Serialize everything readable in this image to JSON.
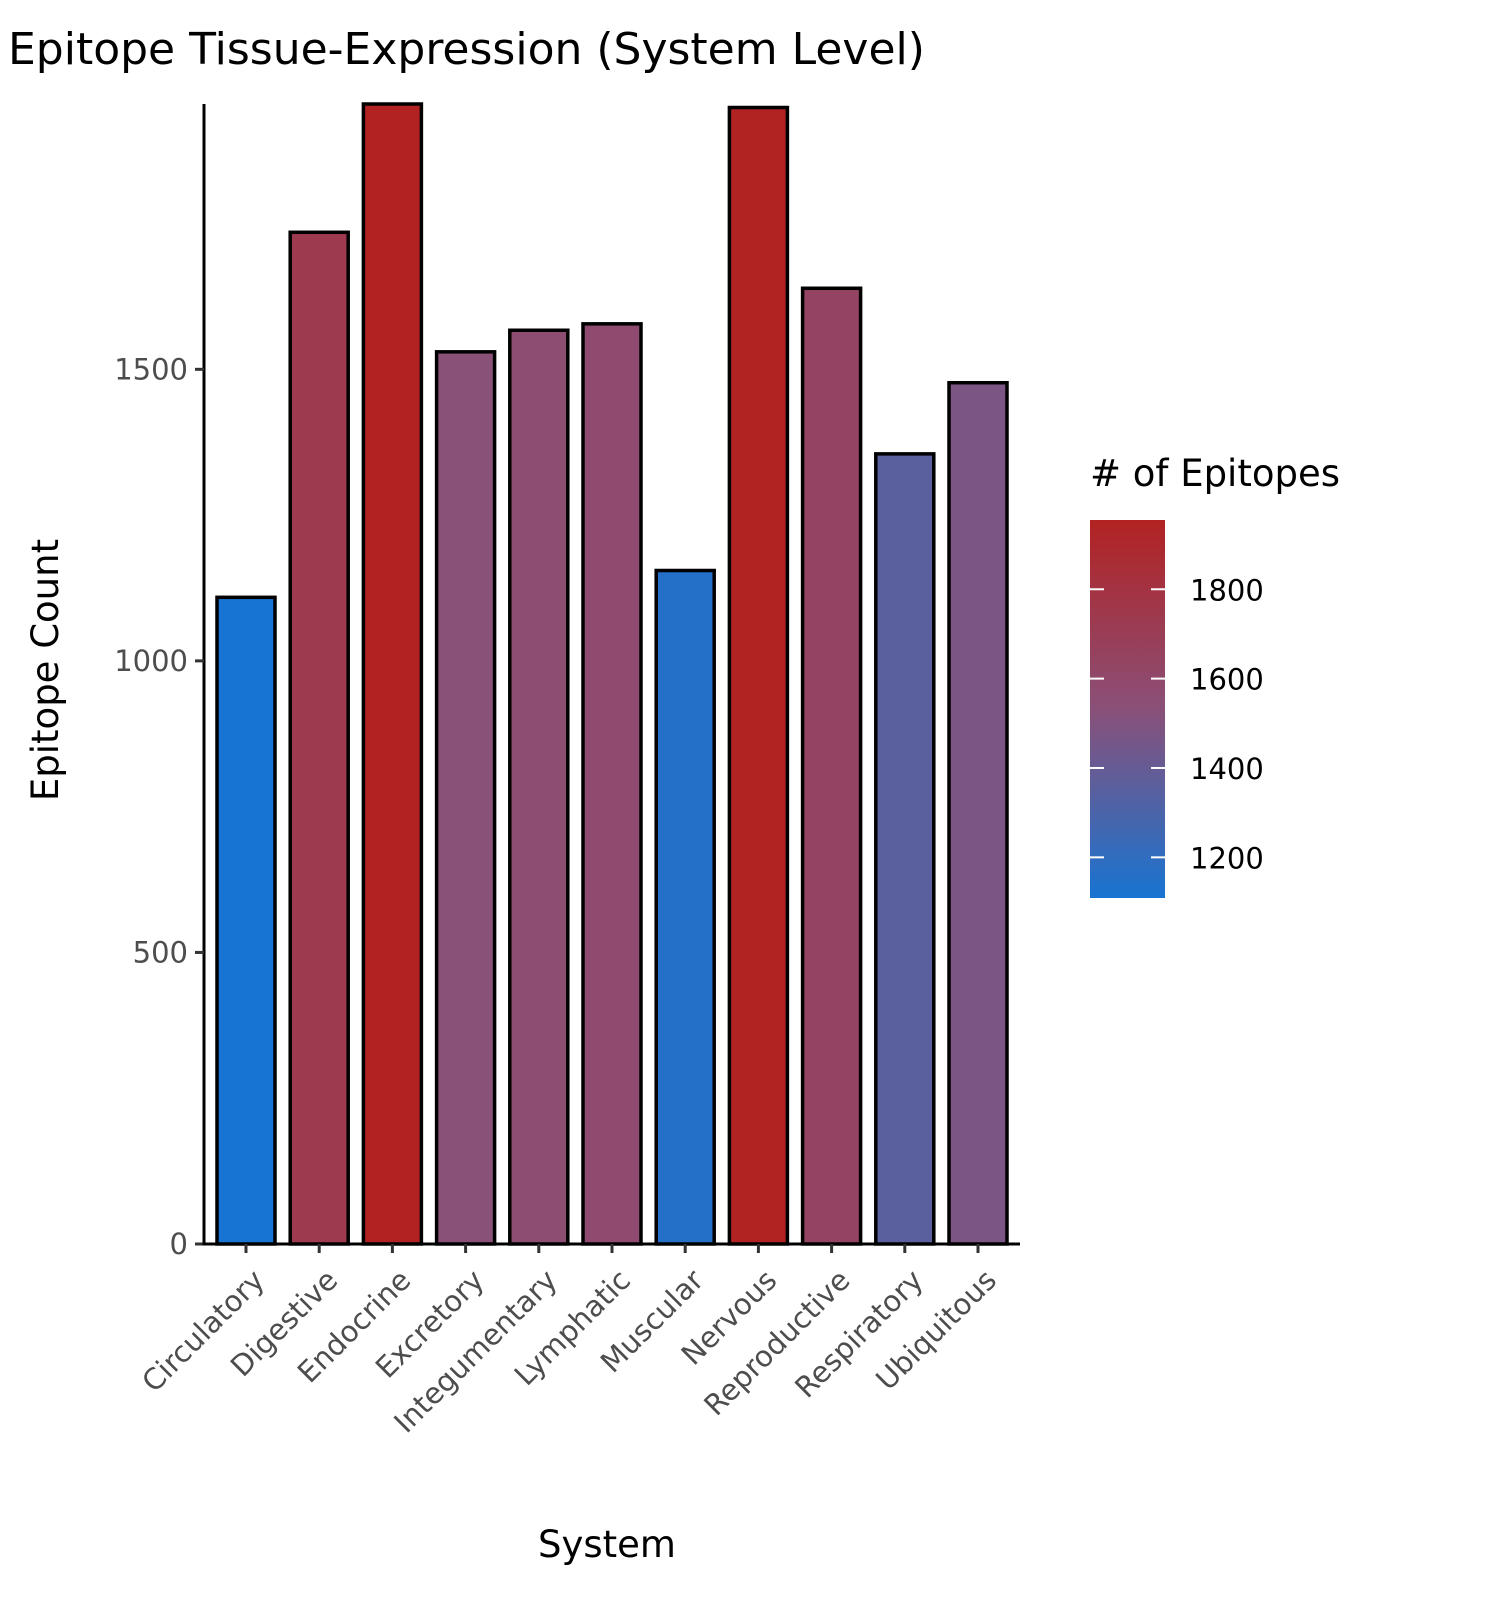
{
  "chart_data": {
    "type": "bar",
    "title": "Epitope Tissue-Expression (System Level)",
    "xlabel": "System",
    "ylabel": "Epitope Count",
    "categories": [
      "Circulatory",
      "Digestive",
      "Endocrine",
      "Excretory",
      "Integumentary",
      "Lymphatic",
      "Muscular",
      "Nervous",
      "Reproductive",
      "Respiratory",
      "Ubiquitous"
    ],
    "values": [
      1109,
      1735,
      1955,
      1530,
      1567,
      1578,
      1155,
      1949,
      1639,
      1355,
      1477
    ],
    "ylim": [
      0,
      1955
    ],
    "yticks": [
      0,
      500,
      1000,
      1500
    ],
    "grid": false,
    "legend": {
      "title": "# of Epitopes",
      "placement": "right",
      "range": [
        1109,
        1955
      ],
      "ticks": [
        1200,
        1400,
        1600,
        1800
      ],
      "color_low": "#1874d2",
      "color_high": "#b22222"
    }
  }
}
